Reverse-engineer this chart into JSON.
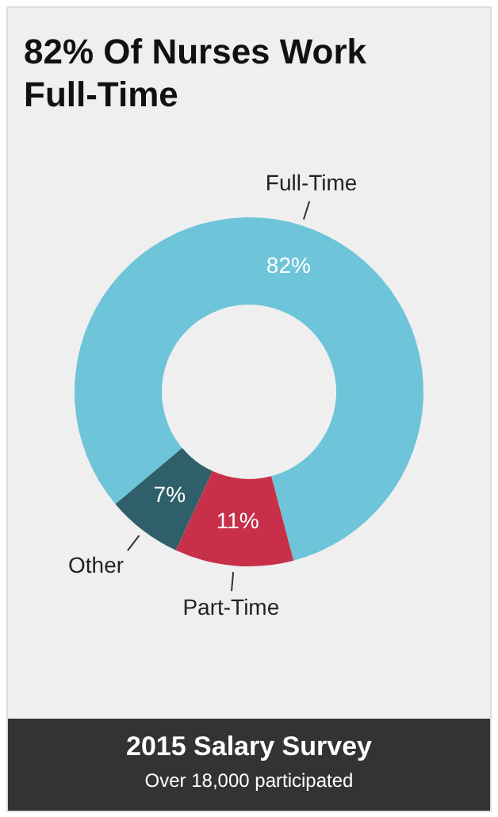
{
  "chart_data": {
    "type": "donut",
    "title": "82% Of Nurses Work Full-Time",
    "categories": [
      "Full-Time",
      "Part-Time",
      "Other"
    ],
    "values": [
      82,
      11,
      7
    ],
    "colors": [
      "#6ec4d8",
      "#c8304a",
      "#2e5f6b"
    ],
    "value_labels": [
      "82%",
      "11%",
      "7%"
    ],
    "legend": false,
    "annotations": [
      "2015 Salary Survey",
      "Over 18,000 participated"
    ]
  }
}
